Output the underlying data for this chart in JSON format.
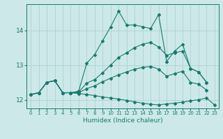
{
  "xlabel": "Humidex (Indice chaleur)",
  "ylabel": "",
  "xlim": [
    -0.5,
    23.5
  ],
  "ylim": [
    11.75,
    14.75
  ],
  "yticks": [
    12,
    13,
    14
  ],
  "xticks": [
    0,
    1,
    2,
    3,
    4,
    5,
    6,
    7,
    8,
    9,
    10,
    11,
    12,
    13,
    14,
    15,
    16,
    17,
    18,
    19,
    20,
    21,
    22,
    23
  ],
  "bg_color": "#cce8e8",
  "line_color": "#1a7a6e",
  "grid_color": "#aacece",
  "series": {
    "max": {
      "x": [
        0,
        1,
        2,
        3,
        4,
        5,
        6,
        7,
        8,
        9,
        10,
        11,
        12,
        13,
        14,
        15,
        16,
        17,
        18,
        19,
        20,
        21,
        22
      ],
      "y": [
        12.15,
        12.2,
        12.5,
        12.55,
        12.2,
        12.2,
        12.25,
        13.05,
        13.3,
        13.7,
        14.1,
        14.55,
        14.15,
        14.15,
        14.1,
        14.05,
        14.45,
        13.1,
        13.4,
        13.6,
        12.9,
        12.8,
        12.5
      ]
    },
    "min": {
      "x": [
        0,
        1,
        2,
        3,
        4,
        5,
        6,
        7,
        8,
        9,
        10,
        11,
        12,
        13,
        14,
        15,
        16,
        17,
        18,
        19,
        20,
        21,
        22,
        23
      ],
      "y": [
        12.15,
        12.2,
        12.5,
        12.55,
        12.2,
        12.2,
        12.18,
        12.15,
        12.12,
        12.08,
        12.05,
        12.02,
        11.98,
        11.94,
        11.9,
        11.87,
        11.85,
        11.88,
        11.9,
        11.93,
        11.97,
        12.0,
        12.05,
        11.85
      ]
    },
    "avg1": {
      "x": [
        0,
        1,
        2,
        3,
        4,
        5,
        6,
        7,
        8,
        9,
        10,
        11,
        12,
        13,
        14,
        15,
        16,
        17,
        18,
        19,
        20,
        21,
        22
      ],
      "y": [
        12.15,
        12.2,
        12.5,
        12.55,
        12.2,
        12.2,
        12.22,
        12.48,
        12.58,
        12.78,
        13.0,
        13.22,
        13.35,
        13.5,
        13.6,
        13.65,
        13.52,
        13.28,
        13.35,
        13.4,
        12.9,
        12.8,
        12.5
      ]
    },
    "avg2": {
      "x": [
        0,
        1,
        2,
        3,
        4,
        5,
        6,
        7,
        8,
        9,
        10,
        11,
        12,
        13,
        14,
        15,
        16,
        17,
        18,
        19,
        20,
        21,
        22
      ],
      "y": [
        12.15,
        12.2,
        12.5,
        12.55,
        12.2,
        12.2,
        12.2,
        12.32,
        12.4,
        12.52,
        12.62,
        12.72,
        12.8,
        12.88,
        12.93,
        12.96,
        12.88,
        12.68,
        12.75,
        12.82,
        12.5,
        12.45,
        12.28
      ]
    }
  }
}
